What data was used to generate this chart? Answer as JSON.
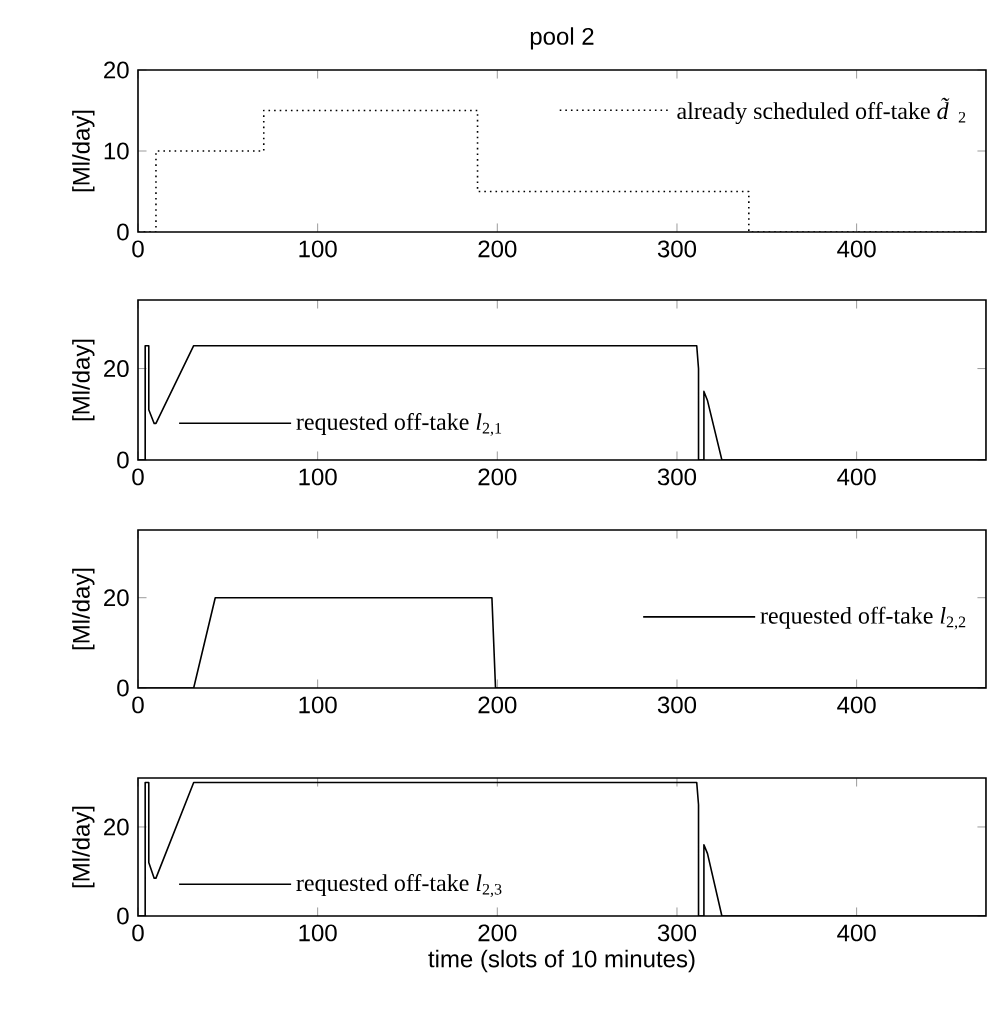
{
  "chart_data": [
    {
      "type": "line",
      "title": "pool 2",
      "ylabel": "[Ml/day]",
      "xlim": [
        0,
        472
      ],
      "xticks": [
        0,
        100,
        200,
        300,
        400
      ],
      "ylim": [
        0,
        20
      ],
      "yticks": [
        0,
        10,
        20
      ],
      "legend": "top right",
      "line_style": "dotted",
      "series": [
        {
          "name": "already scheduled off-take *d̃*$_{2}$",
          "color": "#000000",
          "x": [
            0,
            10,
            10,
            70,
            70,
            189,
            189,
            340,
            340,
            472
          ],
          "values": [
            0,
            0,
            10,
            10,
            15,
            15,
            5,
            5,
            0,
            0
          ]
        }
      ]
    },
    {
      "type": "line",
      "ylabel": "[Ml/day]",
      "xlim": [
        0,
        472
      ],
      "xticks": [
        0,
        100,
        200,
        300,
        400
      ],
      "ylim": [
        0,
        35
      ],
      "yticks": [
        0,
        20
      ],
      "legend": "bottom left",
      "line_style": "solid",
      "series": [
        {
          "name": "requested off-take *l*$_{2,1}$",
          "color": "#000000",
          "x": [
            0,
            4,
            4,
            6,
            6,
            9,
            10,
            31,
            311,
            312,
            312,
            315,
            315,
            317,
            325,
            472
          ],
          "values": [
            0,
            0,
            25,
            25,
            11,
            8,
            8,
            25,
            25,
            20,
            0,
            0,
            15,
            13,
            0,
            0
          ]
        }
      ]
    },
    {
      "type": "line",
      "ylabel": "[Ml/day]",
      "xlim": [
        0,
        472
      ],
      "xticks": [
        0,
        100,
        200,
        300,
        400
      ],
      "ylim": [
        0,
        35
      ],
      "yticks": [
        0,
        20
      ],
      "legend": "right",
      "line_style": "solid",
      "series": [
        {
          "name": "requested off-take *l*$_{2,2}$",
          "color": "#000000",
          "x": [
            0,
            31,
            43,
            197,
            199,
            472
          ],
          "values": [
            0,
            0,
            20,
            20,
            0,
            0
          ]
        }
      ]
    },
    {
      "type": "line",
      "ylabel": "[Ml/day]",
      "xlabel": "time (slots of 10 minutes)",
      "xlim": [
        0,
        472
      ],
      "xticks": [
        0,
        100,
        200,
        300,
        400
      ],
      "ylim": [
        0,
        31
      ],
      "yticks": [
        0,
        20
      ],
      "legend": "bottom left",
      "line_style": "solid",
      "series": [
        {
          "name": "requested off-take *l*$_{2,3}$",
          "color": "#000000",
          "x": [
            0,
            4,
            4,
            6,
            6,
            9,
            10,
            31,
            311,
            312,
            312,
            315,
            315,
            317,
            325,
            472
          ],
          "values": [
            0,
            0,
            30,
            30,
            12,
            8.5,
            8.5,
            30,
            30,
            25,
            0,
            0,
            16,
            14,
            0,
            0
          ]
        }
      ]
    }
  ]
}
